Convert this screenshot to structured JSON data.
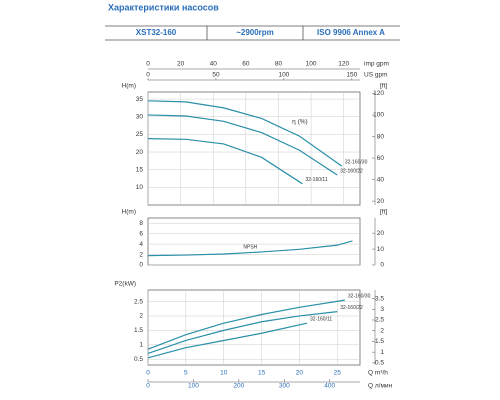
{
  "header": {
    "title": "Характеристики насосов",
    "model": "XST32-160",
    "speed": "~2900rpm",
    "standard": "ISO 9906   Annex A"
  },
  "chart_data": [
    {
      "type": "line",
      "ylabel": "H(m)",
      "y2label": "[ft]",
      "annotation": "η (%)",
      "xlim": [
        0,
        28
      ],
      "ylim": [
        5,
        37
      ],
      "yticks": [
        10,
        15,
        20,
        25,
        30,
        35
      ],
      "y2lim": [
        16.4,
        121.4
      ],
      "y2ticks": [
        20,
        40,
        60,
        80,
        100,
        120
      ],
      "grid": true,
      "top_axes": [
        {
          "label": "imp gpm",
          "lim": [
            0,
            130
          ],
          "ticks": [
            0,
            20,
            40,
            60,
            80,
            100,
            120
          ]
        },
        {
          "label": "US gpm",
          "lim": [
            0,
            156
          ],
          "ticks": [
            0,
            50,
            100,
            150
          ]
        }
      ],
      "series": [
        {
          "name": "32-160/30",
          "color": "#2a8fa8",
          "x": [
            0,
            5,
            10,
            15,
            20,
            25.6
          ],
          "values": [
            34.5,
            34.2,
            32.5,
            29.5,
            24.5,
            16
          ]
        },
        {
          "name": "32-160/22",
          "color": "#2a8fa8",
          "x": [
            0,
            5,
            10,
            15,
            20,
            25
          ],
          "values": [
            30.5,
            30.2,
            28.7,
            25.5,
            20.5,
            13.5
          ]
        },
        {
          "name": "32-160/11",
          "color": "#2a8fa8",
          "x": [
            0,
            5,
            10,
            15,
            20.4
          ],
          "values": [
            23.8,
            23.6,
            22.3,
            18.5,
            11
          ]
        }
      ]
    },
    {
      "type": "line",
      "ylabel": "H(m)",
      "y2label": "[ft]",
      "xlim": [
        0,
        28
      ],
      "ylim": [
        0,
        9
      ],
      "yticks": [
        0,
        2,
        4,
        6,
        8
      ],
      "y2lim": [
        0,
        29.5
      ],
      "y2ticks": [
        0,
        10,
        20
      ],
      "grid": true,
      "series": [
        {
          "name": "NPSH",
          "color": "#2a8fa8",
          "x": [
            0,
            5,
            10,
            15,
            20,
            25,
            27
          ],
          "values": [
            1.8,
            1.9,
            2.1,
            2.5,
            3.0,
            3.8,
            4.6
          ]
        }
      ]
    },
    {
      "type": "line",
      "ylabel": "P2(kW)",
      "xlim": [
        0,
        28
      ],
      "ylim": [
        0.3,
        2.9
      ],
      "yticks": [
        0.5,
        1,
        1.5,
        2,
        2.5
      ],
      "y2lim": [
        0.4,
        3.9
      ],
      "y2ticks": [
        0.5,
        1,
        1.5,
        2,
        2.5,
        3,
        3.5
      ],
      "grid": true,
      "xticks": [
        0,
        5,
        10,
        15,
        20,
        25
      ],
      "xlabel": "Q m³/h",
      "x2lim": [
        0,
        466.7
      ],
      "x2ticks": [
        0,
        100,
        200,
        300,
        400
      ],
      "x2label": "Q л/мин",
      "series": [
        {
          "name": "32-160/30",
          "color": "#2a8fa8",
          "x": [
            0,
            5,
            10,
            15,
            20,
            26
          ],
          "values": [
            0.85,
            1.35,
            1.75,
            2.05,
            2.3,
            2.55
          ]
        },
        {
          "name": "32-160/22",
          "color": "#2a8fa8",
          "x": [
            0,
            5,
            10,
            15,
            20,
            25
          ],
          "values": [
            0.7,
            1.15,
            1.5,
            1.8,
            2.0,
            2.15
          ]
        },
        {
          "name": "32-160/11",
          "color": "#2a8fa8",
          "x": [
            0,
            5,
            10,
            15,
            21
          ],
          "values": [
            0.55,
            0.9,
            1.15,
            1.4,
            1.75
          ]
        }
      ]
    }
  ]
}
